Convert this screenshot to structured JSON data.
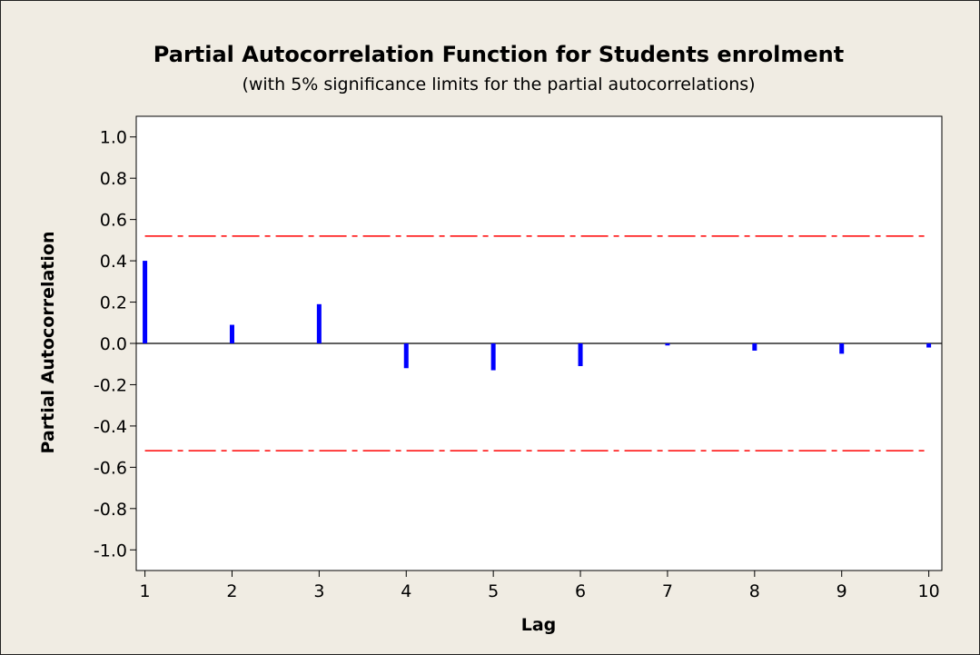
{
  "chart_data": {
    "type": "bar",
    "title": "Partial Autocorrelation Function for Students enrolment",
    "subtitle": "(with 5% significance limits for the partial autocorrelations)",
    "xlabel": "Lag",
    "ylabel": "Partial Autocorrelation",
    "categories": [
      "1",
      "2",
      "3",
      "4",
      "5",
      "6",
      "7",
      "8",
      "9",
      "10"
    ],
    "x": [
      1,
      2,
      3,
      4,
      5,
      6,
      7,
      8,
      9,
      10
    ],
    "values": [
      0.4,
      0.09,
      0.19,
      -0.12,
      -0.13,
      -0.11,
      -0.01,
      -0.035,
      -0.05,
      -0.02
    ],
    "significance_limits": {
      "upper": 0.52,
      "lower": -0.52
    },
    "ylim": [
      -1.1,
      1.1
    ],
    "xlim": [
      0.9,
      10.15
    ],
    "y_ticks": [
      "1.0",
      "0.8",
      "0.6",
      "0.4",
      "0.2",
      "0.0",
      "-0.2",
      "-0.4",
      "-0.6",
      "-0.8",
      "-1.0"
    ],
    "x_ticks": [
      "1",
      "2",
      "3",
      "4",
      "5",
      "6",
      "7",
      "8",
      "9",
      "10"
    ],
    "colors": {
      "bars": "#0000ff",
      "limits": "#ff0000",
      "zero_line": "#000000",
      "background": "#f0ece3",
      "plot_area": "#ffffff"
    },
    "grid": false,
    "legend": "none"
  }
}
